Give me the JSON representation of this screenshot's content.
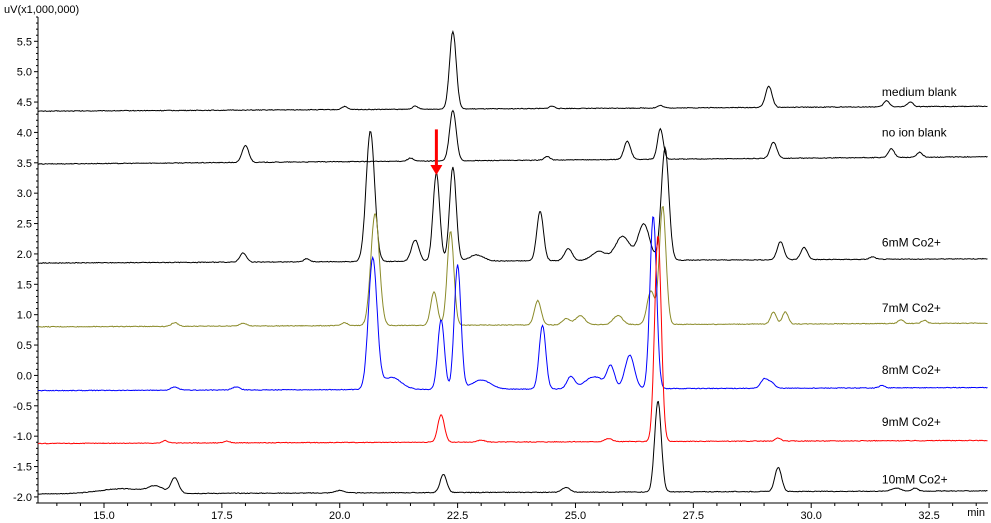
{
  "chart_data": {
    "type": "line",
    "y_unit_label": "uV(x1,000,000)",
    "x_unit_label": "min",
    "xlim": [
      13.6,
      33.75
    ],
    "ylim": [
      -2.1,
      5.9
    ],
    "x_ticks": [
      {
        "value": 15.0,
        "label": "15.0"
      },
      {
        "value": 17.5,
        "label": "17.5"
      },
      {
        "value": 20.0,
        "label": "20.0"
      },
      {
        "value": 22.5,
        "label": "22.5"
      },
      {
        "value": 25.0,
        "label": "25.0"
      },
      {
        "value": 27.5,
        "label": "27.5"
      },
      {
        "value": 30.0,
        "label": "30.0"
      },
      {
        "value": 32.5,
        "label": "32.5"
      }
    ],
    "y_ticks": [
      {
        "value": 5.5,
        "label": "5.5"
      },
      {
        "value": 5.0,
        "label": "5.0"
      },
      {
        "value": 4.5,
        "label": "4.5"
      },
      {
        "value": 4.0,
        "label": "4.0"
      },
      {
        "value": 3.5,
        "label": "3.5"
      },
      {
        "value": 3.0,
        "label": "3.0"
      },
      {
        "value": 2.5,
        "label": "2.5"
      },
      {
        "value": 2.0,
        "label": "2.0"
      },
      {
        "value": 1.5,
        "label": "1.5"
      },
      {
        "value": 1.0,
        "label": "1.0"
      },
      {
        "value": 0.5,
        "label": "0.5"
      },
      {
        "value": 0.0,
        "label": "0.0"
      },
      {
        "value": -0.5,
        "label": "-0.5"
      },
      {
        "value": -1.0,
        "label": "-1.0"
      },
      {
        "value": -1.5,
        "label": "-1.5"
      },
      {
        "value": -2.0,
        "label": "-2.0"
      }
    ],
    "grid": false,
    "series": [
      {
        "name": "medium blank",
        "color": "#000000",
        "baseline_start": 4.35,
        "baseline_end": 4.43,
        "label_at": [
          31.5,
          4.6
        ],
        "peaks": [
          [
            20.1,
            0.05,
            0.06
          ],
          [
            21.6,
            0.05,
            0.06
          ],
          [
            22.4,
            1.28,
            0.07
          ],
          [
            24.5,
            0.04,
            0.06
          ],
          [
            26.8,
            0.04,
            0.06
          ],
          [
            29.1,
            0.35,
            0.07
          ],
          [
            31.6,
            0.1,
            0.06
          ],
          [
            32.1,
            0.08,
            0.06
          ]
        ]
      },
      {
        "name": "no ion blank",
        "color": "#000000",
        "baseline_start": 3.48,
        "baseline_end": 3.6,
        "label_at": [
          31.5,
          3.93
        ],
        "peaks": [
          [
            18.0,
            0.28,
            0.07
          ],
          [
            21.5,
            0.05,
            0.06
          ],
          [
            22.4,
            0.83,
            0.07
          ],
          [
            24.4,
            0.06,
            0.06
          ],
          [
            26.1,
            0.3,
            0.07
          ],
          [
            26.8,
            0.5,
            0.06
          ],
          [
            29.2,
            0.27,
            0.07
          ],
          [
            31.7,
            0.15,
            0.06
          ],
          [
            32.3,
            0.08,
            0.06
          ]
        ]
      },
      {
        "name": "6mM Co2+",
        "color": "#000000",
        "baseline_start": 1.85,
        "baseline_end": 1.92,
        "label_at": [
          31.5,
          2.12
        ],
        "peaks": [
          [
            17.95,
            0.15,
            0.07
          ],
          [
            19.3,
            0.05,
            0.06
          ],
          [
            20.65,
            2.15,
            0.09
          ],
          [
            21.6,
            0.35,
            0.08
          ],
          [
            22.05,
            1.45,
            0.07
          ],
          [
            22.4,
            1.55,
            0.07
          ],
          [
            22.9,
            0.1,
            0.15
          ],
          [
            24.25,
            0.82,
            0.07
          ],
          [
            24.85,
            0.2,
            0.08
          ],
          [
            25.5,
            0.15,
            0.15
          ],
          [
            26.0,
            0.4,
            0.15
          ],
          [
            26.45,
            0.6,
            0.12
          ],
          [
            26.9,
            1.85,
            0.08
          ],
          [
            29.35,
            0.3,
            0.07
          ],
          [
            29.85,
            0.2,
            0.07
          ],
          [
            31.3,
            0.04,
            0.06
          ]
        ]
      },
      {
        "name": "7mM Co2+",
        "color": "#8b8b2a",
        "baseline_start": 0.8,
        "baseline_end": 0.86,
        "label_at": [
          31.5,
          1.04
        ],
        "peaks": [
          [
            16.5,
            0.06,
            0.07
          ],
          [
            17.95,
            0.05,
            0.07
          ],
          [
            20.1,
            0.05,
            0.06
          ],
          [
            20.75,
            1.85,
            0.09
          ],
          [
            22.0,
            0.55,
            0.07
          ],
          [
            22.35,
            1.55,
            0.07
          ],
          [
            24.2,
            0.4,
            0.07
          ],
          [
            24.8,
            0.1,
            0.08
          ],
          [
            25.1,
            0.15,
            0.1
          ],
          [
            25.9,
            0.15,
            0.1
          ],
          [
            26.6,
            0.55,
            0.08
          ],
          [
            26.85,
            1.95,
            0.07
          ],
          [
            29.2,
            0.2,
            0.06
          ],
          [
            29.45,
            0.2,
            0.06
          ],
          [
            31.9,
            0.06,
            0.06
          ],
          [
            32.4,
            0.05,
            0.06
          ]
        ]
      },
      {
        "name": "8mM Co2+",
        "color": "#0000ff",
        "baseline_start": -0.25,
        "baseline_end": -0.2,
        "label_at": [
          31.5,
          0.02
        ],
        "peaks": [
          [
            16.5,
            0.05,
            0.08
          ],
          [
            17.8,
            0.05,
            0.08
          ],
          [
            20.7,
            2.15,
            0.09
          ],
          [
            21.1,
            0.2,
            0.2
          ],
          [
            22.15,
            1.15,
            0.07
          ],
          [
            22.5,
            2.05,
            0.07
          ],
          [
            23.0,
            0.15,
            0.2
          ],
          [
            24.3,
            1.05,
            0.07
          ],
          [
            24.9,
            0.2,
            0.08
          ],
          [
            25.4,
            0.2,
            0.2
          ],
          [
            25.75,
            0.35,
            0.08
          ],
          [
            26.15,
            0.55,
            0.1
          ],
          [
            26.65,
            2.85,
            0.07
          ],
          [
            29.0,
            0.15,
            0.07
          ],
          [
            29.15,
            0.1,
            0.07
          ],
          [
            31.5,
            0.04,
            0.06
          ]
        ]
      },
      {
        "name": "9mM Co2+",
        "color": "#ff0000",
        "baseline_start": -1.12,
        "baseline_end": -1.07,
        "label_at": [
          31.5,
          -0.83
        ],
        "peaks": [
          [
            16.3,
            0.04,
            0.06
          ],
          [
            17.6,
            0.03,
            0.06
          ],
          [
            22.15,
            0.45,
            0.07
          ],
          [
            23.0,
            0.03,
            0.08
          ],
          [
            25.7,
            0.05,
            0.08
          ],
          [
            26.75,
            3.4,
            0.07
          ],
          [
            29.3,
            0.05,
            0.06
          ]
        ]
      },
      {
        "name": "10mM Co2+",
        "color": "#000000",
        "baseline_start": -1.95,
        "baseline_end": -1.9,
        "label_at": [
          31.5,
          -1.78
        ],
        "peaks": [
          [
            15.4,
            0.08,
            0.5
          ],
          [
            16.1,
            0.1,
            0.15
          ],
          [
            16.5,
            0.25,
            0.08
          ],
          [
            20.0,
            0.04,
            0.1
          ],
          [
            22.2,
            0.3,
            0.07
          ],
          [
            24.8,
            0.08,
            0.08
          ],
          [
            26.75,
            1.5,
            0.07
          ],
          [
            29.3,
            0.4,
            0.07
          ],
          [
            31.8,
            0.05,
            0.1
          ],
          [
            32.2,
            0.05,
            0.06
          ]
        ]
      }
    ],
    "annotation_arrow": {
      "x": 22.05,
      "y_top": 4.05,
      "y_bottom": 3.3,
      "color": "#ff0000"
    }
  }
}
